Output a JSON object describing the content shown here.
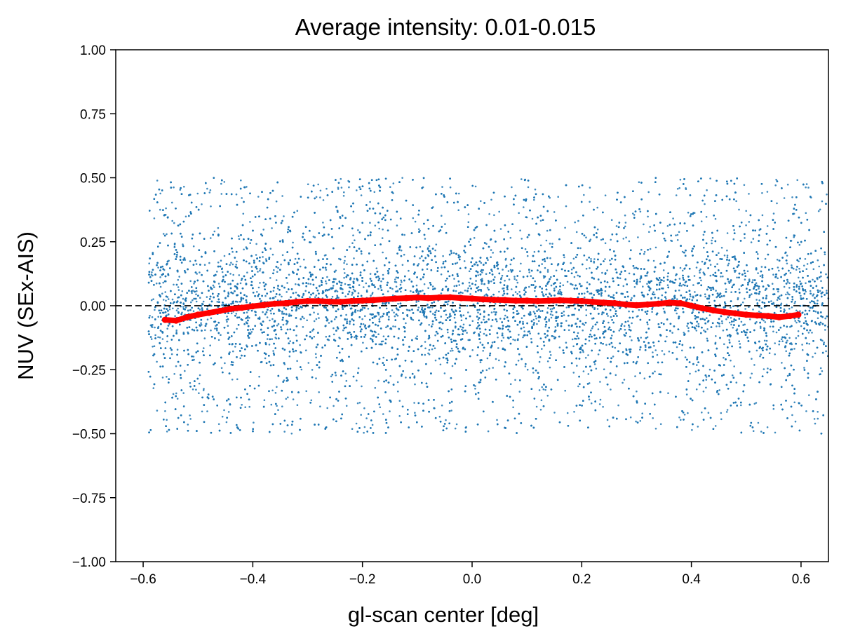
{
  "chart_data": {
    "type": "scatter",
    "title": "Average intensity: 0.01-0.015",
    "xlabel": "gl-scan center [deg]",
    "ylabel": "NUV (SEx-AIS)",
    "xlim": [
      -0.65,
      0.65
    ],
    "ylim": [
      -1.0,
      1.0
    ],
    "x_ticks": [
      -0.6,
      -0.4,
      -0.2,
      0.0,
      0.2,
      0.4,
      0.6
    ],
    "x_tick_labels": [
      "−0.6",
      "−0.4",
      "−0.2",
      "0.0",
      "0.2",
      "0.4",
      "0.6"
    ],
    "y_ticks": [
      -1.0,
      -0.75,
      -0.5,
      -0.25,
      0.0,
      0.25,
      0.5,
      0.75,
      1.0
    ],
    "y_tick_labels": [
      "−1.00",
      "−0.75",
      "−0.50",
      "−0.25",
      "0.00",
      "0.25",
      "0.50",
      "0.75",
      "1.00"
    ],
    "grid": false,
    "reference_line": {
      "y": 0.0,
      "style": "dashed",
      "color": "#000000"
    },
    "series": [
      {
        "kind": "scatter-cloud",
        "color": "#1f77b4",
        "approx_point_count": 12000,
        "x_range": [
          -0.59,
          0.65
        ],
        "y_range": [
          -0.5,
          0.5
        ],
        "density": "concentrated near y = 0, spread roughly uniform to ±0.5"
      },
      {
        "kind": "running-mean",
        "color": "#ff0000",
        "x": [
          -0.56,
          -0.54,
          -0.52,
          -0.5,
          -0.48,
          -0.46,
          -0.44,
          -0.42,
          -0.4,
          -0.38,
          -0.36,
          -0.34,
          -0.32,
          -0.3,
          -0.28,
          -0.26,
          -0.24,
          -0.22,
          -0.2,
          -0.18,
          -0.16,
          -0.14,
          -0.12,
          -0.1,
          -0.08,
          -0.06,
          -0.04,
          -0.02,
          0.0,
          0.02,
          0.04,
          0.06,
          0.08,
          0.1,
          0.12,
          0.14,
          0.16,
          0.18,
          0.2,
          0.22,
          0.24,
          0.26,
          0.28,
          0.3,
          0.32,
          0.34,
          0.36,
          0.38,
          0.4,
          0.42,
          0.44,
          0.46,
          0.48,
          0.5,
          0.52,
          0.54,
          0.56,
          0.58,
          0.595
        ],
        "y": [
          -0.055,
          -0.058,
          -0.045,
          -0.035,
          -0.028,
          -0.02,
          -0.012,
          -0.008,
          -0.002,
          0.003,
          0.008,
          0.01,
          0.015,
          0.018,
          0.018,
          0.016,
          0.015,
          0.018,
          0.02,
          0.022,
          0.025,
          0.028,
          0.03,
          0.032,
          0.03,
          0.032,
          0.033,
          0.03,
          0.028,
          0.025,
          0.023,
          0.022,
          0.02,
          0.02,
          0.018,
          0.02,
          0.021,
          0.02,
          0.018,
          0.015,
          0.012,
          0.01,
          0.005,
          0.002,
          0.005,
          0.008,
          0.012,
          0.01,
          0.0,
          -0.01,
          -0.018,
          -0.025,
          -0.03,
          -0.035,
          -0.038,
          -0.04,
          -0.045,
          -0.04,
          -0.035
        ]
      }
    ]
  }
}
